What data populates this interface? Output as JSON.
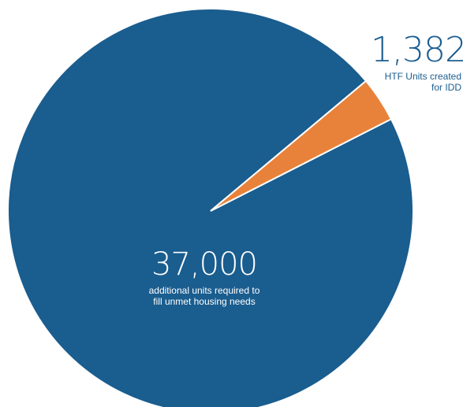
{
  "chart_data": {
    "type": "pie",
    "title": "",
    "slices": [
      {
        "label": "additional units required to fill unmet housing needs",
        "value": 37000,
        "value_label": "37,000",
        "color": "#1a5d8f"
      },
      {
        "label": "HTF Units created for IDD",
        "value": 1382,
        "value_label": "1,382",
        "color": "#e8823a"
      }
    ],
    "legend": "none",
    "labels": {
      "main_value": "37,000",
      "main_text_line1": "additional units required to",
      "main_text_line2": "fill unmet housing needs",
      "small_value": "1,382",
      "small_text_line1": "HTF Units created",
      "small_text_line2": "for IDD"
    }
  }
}
